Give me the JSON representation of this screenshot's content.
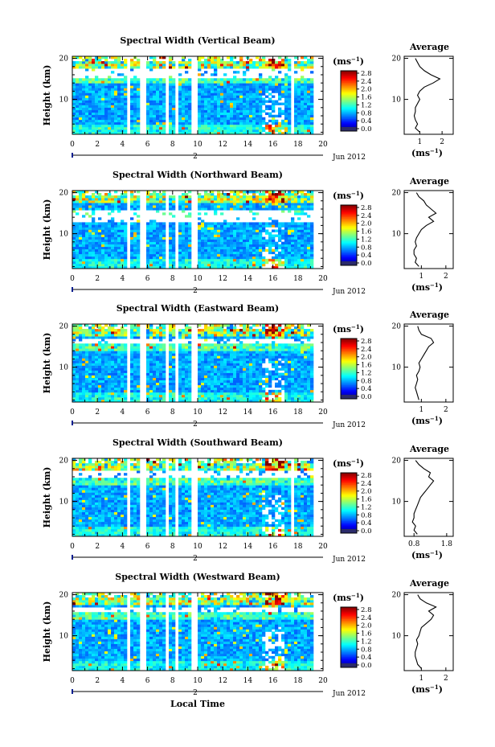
{
  "chart_data": [
    {
      "type": "heatmap",
      "title": "Spectral Width (Vertical Beam)",
      "ylabel": "Height (km)",
      "x_ticks": [
        "0",
        "2",
        "4",
        "6",
        "8",
        "10",
        "12",
        "14",
        "16",
        "18",
        "20"
      ],
      "y_ticks": [
        "10",
        "20"
      ],
      "date_label": "2",
      "month_label": "Jun 2012",
      "xlim": [
        0,
        20
      ],
      "ylim": [
        1.5,
        20.5
      ],
      "gaps": [
        [
          4.3,
          4.6
        ],
        [
          5.5,
          5.8
        ],
        [
          7.5,
          7.8
        ],
        [
          8.2,
          8.5
        ],
        [
          9.6,
          10.0
        ],
        [
          17.5,
          17.8
        ]
      ],
      "bands": [
        {
          "from": 14.0,
          "to": 18.0,
          "gap_from": 15.0,
          "gap_to": 17.5
        }
      ],
      "colorbar": {
        "unit": "(ms",
        "unit_exp": "−1",
        "unit_close": ")",
        "ticks": [
          "2.8",
          "2.4",
          "2.0",
          "1.6",
          "1.2",
          "0.8",
          "0.4",
          "0.0"
        ],
        "range": [
          0,
          2.8
        ]
      },
      "profile": {
        "title": "Average",
        "ylabel": "",
        "xlabel": "(ms",
        "xlabel_exp": "−1",
        "xlabel_close": ")",
        "x_ticks": [
          "1",
          "2"
        ],
        "xlim": [
          0.3,
          2.5
        ],
        "y_ticks": [
          "10",
          "20"
        ],
        "ylim": [
          1.5,
          20.5
        ],
        "height": [
          2.0,
          3.0,
          4.0,
          5.0,
          6.0,
          7.0,
          8.0,
          9.0,
          10.0,
          11.0,
          12.0,
          13.0,
          14.0,
          15.0,
          16.0,
          17.0,
          18.0,
          19.0,
          20.0
        ],
        "width": [
          1.0,
          0.8,
          0.9,
          0.8,
          0.75,
          0.8,
          0.8,
          0.9,
          1.0,
          0.9,
          1.0,
          1.2,
          1.6,
          1.9,
          1.5,
          1.2,
          1.0,
          0.9,
          0.8
        ]
      }
    },
    {
      "type": "heatmap",
      "title": "Spectral Width (Northward Beam)",
      "ylabel": "Height (km)",
      "x_ticks": [
        "0",
        "2",
        "4",
        "6",
        "8",
        "10",
        "12",
        "14",
        "16",
        "18",
        "20"
      ],
      "y_ticks": [
        "10",
        "20"
      ],
      "date_label": "2",
      "month_label": "Jun 2012",
      "xlim": [
        0,
        20
      ],
      "ylim": [
        1.5,
        20.5
      ],
      "gaps": [
        [
          4.3,
          4.6
        ],
        [
          5.5,
          5.8
        ],
        [
          7.5,
          7.8
        ],
        [
          8.2,
          8.5
        ],
        [
          9.6,
          10.0
        ]
      ],
      "bands": [
        {
          "from": 12.5,
          "to": 16.0,
          "gap_from": 13.0,
          "gap_to": 16.0
        }
      ],
      "colorbar": {
        "unit": "(ms",
        "unit_exp": "−1",
        "unit_close": ")",
        "ticks": [
          "2.8",
          "2.4",
          "2.0",
          "1.6",
          "1.2",
          "0.8",
          "0.4",
          "0.0"
        ],
        "range": [
          0,
          2.8
        ]
      },
      "profile": {
        "title": "Average",
        "ylabel": "",
        "xlabel": "(ms",
        "xlabel_exp": "−1",
        "xlabel_close": ")",
        "x_ticks": [
          "1",
          "2"
        ],
        "xlim": [
          0.3,
          2.3
        ],
        "y_ticks": [
          "10",
          "20"
        ],
        "ylim": [
          1.5,
          20.5
        ],
        "height": [
          2.0,
          3.0,
          4.0,
          5.0,
          6.0,
          7.0,
          8.0,
          9.0,
          10.0,
          11.0,
          12.0,
          13.0,
          14.0,
          15.0,
          16.0,
          17.0,
          18.0,
          19.0,
          20.0
        ],
        "width": [
          0.9,
          0.75,
          0.8,
          0.7,
          0.7,
          0.8,
          0.75,
          0.8,
          0.9,
          1.0,
          1.2,
          1.5,
          1.3,
          1.6,
          1.4,
          1.2,
          1.1,
          0.9,
          0.8
        ]
      }
    },
    {
      "type": "heatmap",
      "title": "Spectral Width (Eastward Beam)",
      "ylabel": "Height (km)",
      "x_ticks": [
        "0",
        "2",
        "4",
        "6",
        "8",
        "10",
        "12",
        "14",
        "16",
        "18",
        "20"
      ],
      "y_ticks": [
        "10",
        "20"
      ],
      "date_label": "2",
      "month_label": "Jun 2012",
      "xlim": [
        0,
        20
      ],
      "ylim": [
        1.5,
        20.5
      ],
      "gaps": [
        [
          4.3,
          4.6
        ],
        [
          5.5,
          5.8
        ],
        [
          7.5,
          7.8
        ],
        [
          8.2,
          8.5
        ],
        [
          9.6,
          10.0
        ]
      ],
      "bands": [
        {
          "from": 16.5,
          "to": 18.5,
          "gap_from": 15.5,
          "gap_to": 17.0
        }
      ],
      "colorbar": {
        "unit": "(ms",
        "unit_exp": "−1",
        "unit_close": ")",
        "ticks": [
          "2.8",
          "2.4",
          "2.0",
          "1.6",
          "1.2",
          "0.8",
          "0.4",
          "0.0"
        ],
        "range": [
          0,
          2.8
        ]
      },
      "profile": {
        "title": "Average",
        "ylabel": "",
        "xlabel": "(ms",
        "xlabel_exp": "−1",
        "xlabel_close": ")",
        "x_ticks": [
          "1",
          "2"
        ],
        "xlim": [
          0.3,
          2.3
        ],
        "y_ticks": [
          "10",
          "20"
        ],
        "ylim": [
          1.5,
          20.5
        ],
        "height": [
          2.0,
          3.0,
          4.0,
          5.0,
          6.0,
          7.0,
          8.0,
          9.0,
          10.0,
          11.0,
          12.0,
          13.0,
          14.0,
          15.0,
          16.0,
          17.0,
          18.0,
          19.0,
          20.0
        ],
        "width": [
          0.9,
          0.85,
          0.8,
          0.75,
          0.8,
          0.85,
          0.8,
          0.9,
          0.95,
          0.9,
          1.0,
          1.1,
          1.2,
          1.3,
          1.5,
          1.4,
          1.0,
          0.9,
          0.85
        ]
      }
    },
    {
      "type": "heatmap",
      "title": "Spectral Width (Southward Beam)",
      "ylabel": "Height (km)",
      "x_ticks": [
        "0",
        "2",
        "4",
        "6",
        "8",
        "10",
        "12",
        "14",
        "16",
        "18",
        "20"
      ],
      "y_ticks": [
        "10",
        "20"
      ],
      "date_label": "2",
      "month_label": "Jun 2012",
      "xlim": [
        0,
        20
      ],
      "ylim": [
        1.5,
        20.5
      ],
      "gaps": [
        [
          4.3,
          4.6
        ],
        [
          5.5,
          5.8
        ],
        [
          7.5,
          7.8
        ],
        [
          8.2,
          8.5
        ],
        [
          9.6,
          10.0
        ],
        [
          17.5,
          17.8
        ]
      ],
      "bands": [
        {
          "from": 14.0,
          "to": 17.0,
          "gap_from": 15.5,
          "gap_to": 17.5
        }
      ],
      "colorbar": {
        "unit": "(ms",
        "unit_exp": "−1",
        "unit_close": ")",
        "ticks": [
          "2.8",
          "2.4",
          "2.0",
          "1.6",
          "1.2",
          "0.8",
          "0.4",
          "0.0"
        ],
        "range": [
          0,
          2.8
        ]
      },
      "profile": {
        "title": "Average",
        "ylabel": "",
        "xlabel": "(ms",
        "xlabel_exp": "−1",
        "xlabel_close": ")",
        "x_ticks": [
          "0.8",
          "1.8"
        ],
        "xlim": [
          0.5,
          2.0
        ],
        "y_ticks": [
          "10",
          "20"
        ],
        "ylim": [
          1.5,
          20.5
        ],
        "height": [
          2.0,
          3.0,
          4.0,
          5.0,
          6.0,
          7.0,
          8.0,
          9.0,
          10.0,
          11.0,
          12.0,
          13.0,
          14.0,
          15.0,
          16.0,
          17.0,
          18.0,
          19.0,
          20.0
        ],
        "width": [
          0.9,
          0.8,
          0.85,
          0.75,
          0.8,
          0.8,
          0.85,
          0.9,
          0.95,
          1.0,
          1.1,
          1.2,
          1.3,
          1.4,
          1.25,
          1.3,
          1.1,
          0.95,
          0.85
        ]
      }
    },
    {
      "type": "heatmap",
      "title": "Spectral Width (Westward Beam)",
      "ylabel": "Height (km)",
      "xlabel": "Local Time",
      "x_ticks": [
        "0",
        "2",
        "4",
        "6",
        "8",
        "10",
        "12",
        "14",
        "16",
        "18",
        "20"
      ],
      "y_ticks": [
        "10",
        "20"
      ],
      "date_label": "2",
      "month_label": "Jun 2012",
      "xlim": [
        0,
        20
      ],
      "ylim": [
        1.5,
        20.5
      ],
      "gaps": [
        [
          4.3,
          4.6
        ],
        [
          5.5,
          5.8
        ],
        [
          7.5,
          7.8
        ],
        [
          8.2,
          8.5
        ],
        [
          9.6,
          10.0
        ]
      ],
      "bands": [
        {
          "from": 13.0,
          "to": 17.5,
          "gap_from": 15.5,
          "gap_to": 17.0
        }
      ],
      "colorbar": {
        "unit": "(ms",
        "unit_exp": "−1",
        "unit_close": ")",
        "ticks": [
          "2.8",
          "2.4",
          "2.0",
          "1.6",
          "1.2",
          "0.8",
          "0.4",
          "0.0"
        ],
        "range": [
          0,
          2.8
        ]
      },
      "profile": {
        "title": "Average",
        "ylabel": "",
        "xlabel": "(ms",
        "xlabel_exp": "−1",
        "xlabel_close": ")",
        "x_ticks": [
          "1",
          "2"
        ],
        "xlim": [
          0.3,
          2.3
        ],
        "y_ticks": [
          "10",
          "20"
        ],
        "ylim": [
          1.5,
          20.5
        ],
        "height": [
          2.0,
          3.0,
          4.0,
          5.0,
          6.0,
          7.0,
          8.0,
          9.0,
          10.0,
          11.0,
          12.0,
          13.0,
          14.0,
          15.0,
          16.0,
          17.0,
          18.0,
          19.0,
          20.0
        ],
        "width": [
          1.0,
          0.85,
          0.8,
          0.75,
          0.75,
          0.8,
          0.85,
          0.8,
          0.9,
          0.95,
          1.0,
          1.2,
          1.4,
          1.5,
          1.3,
          1.6,
          1.2,
          0.95,
          0.85
        ]
      }
    }
  ]
}
